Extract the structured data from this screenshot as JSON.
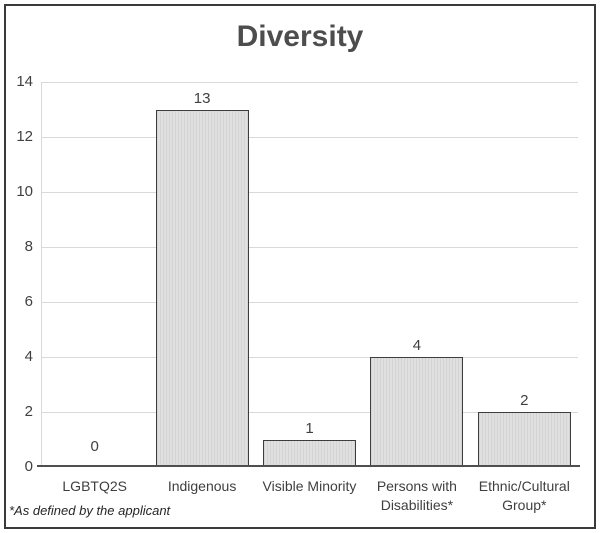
{
  "chart_data": {
    "type": "bar",
    "title": "Diversity",
    "categories": [
      "LGBTQ2S",
      "Indigenous",
      "Visible Minority",
      "Persons with Disabilities*",
      "Ethnic/Cultural Group*"
    ],
    "values": [
      0,
      13,
      1,
      4,
      2
    ],
    "value_labels": [
      "0",
      "13",
      "1",
      "4",
      "2"
    ],
    "xlabel": "",
    "ylabel": "",
    "ylim": [
      0,
      14
    ],
    "yticks": [
      0,
      2,
      4,
      6,
      8,
      10,
      12,
      14
    ],
    "grid": true,
    "legend": "none",
    "footnote": "*As defined by the applicant",
    "colors": {
      "bar_fill": "#dcdcdc",
      "bar_stripe": "#d4d4d4",
      "bar_border": "#3d3d3d",
      "gridline": "#d9d9d9",
      "axis_line": "#4f4f4f",
      "text": "#404040",
      "frame_border": "#3a3a3a",
      "background": "#ffffff"
    }
  }
}
